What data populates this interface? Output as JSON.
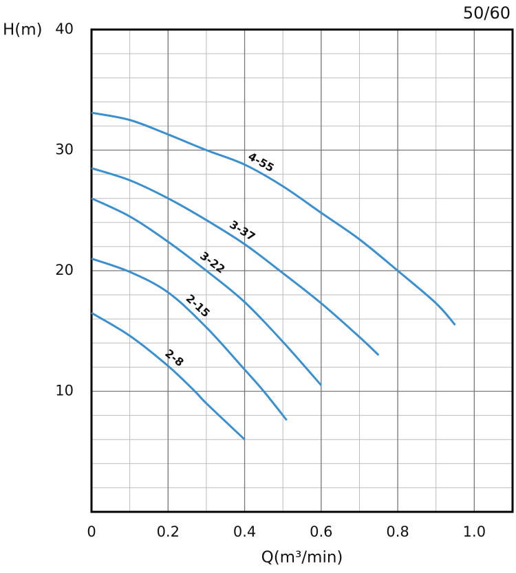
{
  "chart_data": {
    "type": "line",
    "title": "50/60",
    "y_label": "H(m)",
    "x_label": "Q(m³/min)",
    "xlim": [
      0,
      1.1
    ],
    "ylim": [
      0,
      40
    ],
    "xticks": [
      0,
      0.2,
      0.4,
      0.6,
      0.8,
      {
        "value": 1,
        "label": "1.0"
      }
    ],
    "yticks": [
      10,
      20,
      30,
      40
    ],
    "grid": true,
    "series": [
      {
        "name": "4-55",
        "color": "#3a8fcf",
        "x": [
          0,
          0.1,
          0.2,
          0.3,
          0.4,
          0.5,
          0.6,
          0.7,
          0.8,
          0.9,
          0.95
        ],
        "values": [
          33.1,
          32.5,
          31.3,
          30,
          28.8,
          27,
          24.8,
          22.6,
          20,
          17.3,
          15.5
        ]
      },
      {
        "name": "3-37",
        "color": "#3a8fcf",
        "x": [
          0,
          0.1,
          0.2,
          0.3,
          0.4,
          0.5,
          0.6,
          0.7,
          0.75
        ],
        "values": [
          28.5,
          27.5,
          26,
          24.2,
          22.2,
          19.8,
          17.3,
          14.5,
          13
        ]
      },
      {
        "name": "3-22",
        "color": "#3a8fcf",
        "x": [
          0,
          0.1,
          0.2,
          0.3,
          0.4,
          0.5,
          0.6
        ],
        "values": [
          26,
          24.5,
          22.4,
          20,
          17.4,
          14.1,
          10.5
        ]
      },
      {
        "name": "2-15",
        "color": "#3a8fcf",
        "x": [
          0,
          0.1,
          0.2,
          0.3,
          0.4,
          0.45,
          0.51
        ],
        "values": [
          21,
          19.9,
          18.2,
          15.3,
          11.8,
          10,
          7.6
        ]
      },
      {
        "name": "2-8",
        "color": "#3a8fcf",
        "x": [
          0,
          0.1,
          0.2,
          0.27,
          0.3,
          0.4
        ],
        "values": [
          16.5,
          14.6,
          12.1,
          10,
          9,
          6
        ]
      }
    ]
  }
}
